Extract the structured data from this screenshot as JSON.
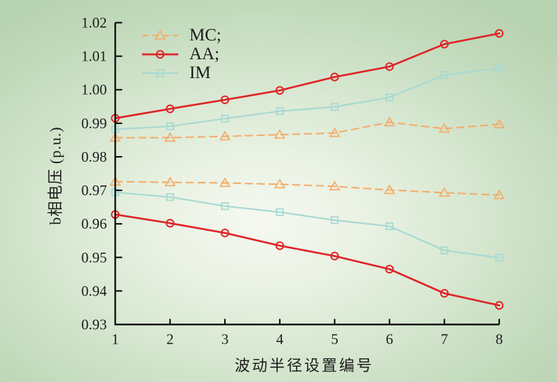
{
  "figure": {
    "background": {
      "center": "#f6f9f1",
      "mid": "#d3e5cd",
      "edge": "#b8d3b2"
    },
    "text_color": "#1c1c1c",
    "axis_color": "#000000"
  },
  "chart_data": {
    "type": "line",
    "title": "",
    "xlabel": "波动半径设置编号",
    "ylabel": "b相电压 (p.u.)",
    "xlim": [
      1,
      8
    ],
    "ylim": [
      0.93,
      1.02
    ],
    "xticks": [
      1,
      2,
      3,
      4,
      5,
      6,
      7,
      8
    ],
    "yticks": [
      0.93,
      0.94,
      0.95,
      0.96,
      0.97,
      0.98,
      0.99,
      1.0,
      1.01,
      1.02
    ],
    "grid": false,
    "legend_position": "top-left-inside",
    "legend": [
      {
        "label": "MC;",
        "color": "#f2af6d",
        "dash": true,
        "marker": "triangle"
      },
      {
        "label": "AA;",
        "color": "#e02428",
        "dash": false,
        "marker": "circle"
      },
      {
        "label": "IM",
        "color": "#a7d9d3",
        "dash": false,
        "marker": "square"
      }
    ],
    "x": [
      1,
      2,
      3,
      4,
      5,
      6,
      7,
      8
    ],
    "series": [
      {
        "name": "MC upper",
        "legend_ref": "MC;",
        "color": "#f2af6d",
        "dash": true,
        "marker": "triangle",
        "width": 2.2,
        "values": [
          0.9857,
          0.9857,
          0.9861,
          0.9866,
          0.9871,
          0.9903,
          0.9884,
          0.9897
        ]
      },
      {
        "name": "MC lower",
        "legend_ref": "MC;",
        "color": "#f2af6d",
        "dash": true,
        "marker": "triangle",
        "width": 2.2,
        "values": [
          0.9726,
          0.9724,
          0.9722,
          0.9718,
          0.9712,
          0.9701,
          0.9693,
          0.9686
        ]
      },
      {
        "name": "IM upper",
        "legend_ref": "IM",
        "color": "#a7d9d3",
        "dash": false,
        "marker": "square",
        "width": 2.2,
        "values": [
          0.9882,
          0.9891,
          0.9914,
          0.9936,
          0.9949,
          0.9977,
          1.0044,
          1.0064
        ]
      },
      {
        "name": "IM lower",
        "legend_ref": "IM",
        "color": "#a7d9d3",
        "dash": false,
        "marker": "square",
        "width": 2.2,
        "values": [
          0.9694,
          0.968,
          0.9653,
          0.9635,
          0.9611,
          0.9593,
          0.9521,
          0.9499
        ]
      },
      {
        "name": "AA upper",
        "legend_ref": "AA;",
        "color": "#e02428",
        "dash": false,
        "marker": "circle",
        "width": 2.7,
        "values": [
          0.9915,
          0.9943,
          0.997,
          0.9998,
          1.0038,
          1.0069,
          1.0136,
          1.0168
        ]
      },
      {
        "name": "AA lower",
        "legend_ref": "AA;",
        "color": "#e02428",
        "dash": false,
        "marker": "circle",
        "width": 2.7,
        "values": [
          0.9628,
          0.9602,
          0.9573,
          0.9535,
          0.9504,
          0.9465,
          0.9393,
          0.9357
        ]
      }
    ]
  }
}
